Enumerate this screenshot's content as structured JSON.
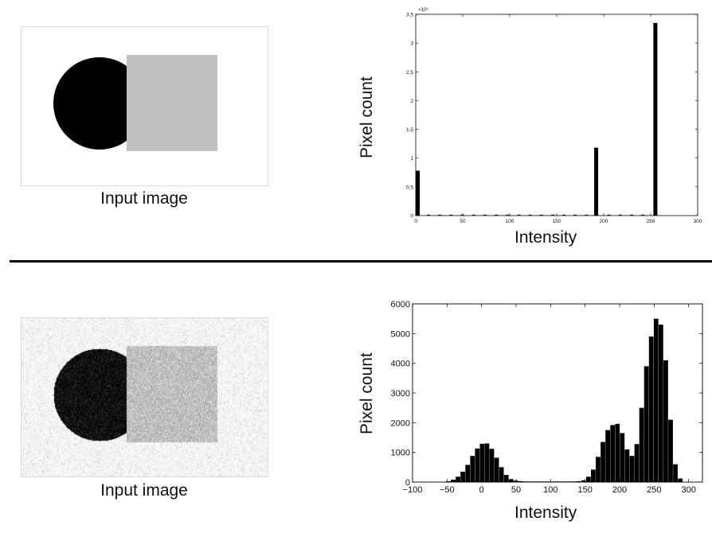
{
  "top_panel": {
    "image_caption": "Input image",
    "chart_ylabel": "Pixel count",
    "chart_xlabel": "Intensity"
  },
  "bottom_panel": {
    "image_caption": "Input image",
    "chart_ylabel": "Pixel count",
    "chart_xlabel": "Intensity"
  },
  "colors": {
    "bar": "#000000",
    "square": "#c0c0c0",
    "circle": "#000000",
    "noise_bg": "#f0f0f0"
  },
  "chart_data": [
    {
      "type": "bar",
      "title": "",
      "xlabel": "Intensity",
      "ylabel": "Pixel count",
      "xlim": [
        0,
        300
      ],
      "ylim": [
        0,
        35000
      ],
      "xticks": [
        "0",
        "50",
        "100",
        "150",
        "200",
        "250",
        "300"
      ],
      "yticks": [
        "0",
        "0.5",
        "1",
        "1.5",
        "2",
        "2.5",
        "3",
        "3.5"
      ],
      "y_multiplier": "×10⁴",
      "grid": false,
      "x": [
        0,
        192,
        255
      ],
      "values": [
        7800,
        11800,
        33500
      ]
    },
    {
      "type": "bar",
      "title": "",
      "xlabel": "Intensity",
      "ylabel": "Pixel count",
      "xlim": [
        -100,
        320
      ],
      "ylim": [
        0,
        6000
      ],
      "xticks": [
        "−100",
        "−50",
        "0",
        "50",
        "100",
        "150",
        "200",
        "250",
        "300"
      ],
      "yticks": [
        "0",
        "1000",
        "2000",
        "3000",
        "4000",
        "5000",
        "6000"
      ],
      "grid": false,
      "bin_width": 7,
      "x": [
        -55,
        -48,
        -41,
        -34,
        -27,
        -20,
        -13,
        -6,
        1,
        8,
        15,
        22,
        29,
        36,
        43,
        50,
        57,
        64,
        71,
        78,
        85,
        92,
        99,
        106,
        113,
        120,
        127,
        134,
        141,
        148,
        155,
        162,
        169,
        176,
        183,
        190,
        197,
        204,
        211,
        218,
        225,
        232,
        239,
        246,
        253,
        260,
        267,
        274,
        281,
        288
      ],
      "values": [
        10,
        30,
        80,
        180,
        350,
        580,
        880,
        1130,
        1290,
        1300,
        1120,
        820,
        500,
        240,
        100,
        50,
        30,
        20,
        20,
        20,
        20,
        20,
        20,
        20,
        20,
        20,
        20,
        20,
        30,
        60,
        180,
        420,
        850,
        1350,
        1750,
        1920,
        1960,
        1650,
        1100,
        880,
        1280,
        2500,
        3900,
        4900,
        5500,
        5300,
        4100,
        2100,
        600,
        120
      ]
    }
  ]
}
